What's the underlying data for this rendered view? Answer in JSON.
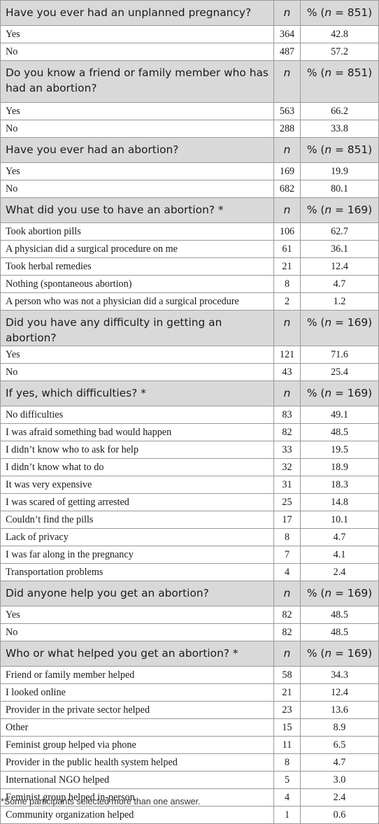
{
  "sections": [
    {
      "question": "Have you ever had an unplanned pregnancy?",
      "n_label": "n",
      "pct_label": "% (n = 851)",
      "rows": [
        {
          "label": "Yes",
          "n": "364",
          "pct": "42.8"
        },
        {
          "label": "No",
          "n": "487",
          "pct": "57.2"
        }
      ]
    },
    {
      "question": "Do you know a friend or family member who has had an abortion?",
      "n_label": "n",
      "pct_label": "% (n = 851)",
      "rows": [
        {
          "label": "Yes",
          "n": "563",
          "pct": "66.2"
        },
        {
          "label": "No",
          "n": "288",
          "pct": "33.8"
        }
      ]
    },
    {
      "question": "Have you ever had an abortion?",
      "n_label": "n",
      "pct_label": "% (n = 851)",
      "rows": [
        {
          "label": "Yes",
          "n": "169",
          "pct": "19.9"
        },
        {
          "label": "No",
          "n": "682",
          "pct": "80.1"
        }
      ]
    },
    {
      "question": "What did you use to have an abortion? *",
      "n_label": "n",
      "pct_label": "% (n = 169)",
      "rows": [
        {
          "label": "Took abortion pills",
          "n": "106",
          "pct": "62.7"
        },
        {
          "label": "A physician did a surgical procedure on me",
          "n": "61",
          "pct": "36.1"
        },
        {
          "label": "Took herbal remedies",
          "n": "21",
          "pct": "12.4"
        },
        {
          "label": "Nothing (spontaneous abortion)",
          "n": "8",
          "pct": "4.7"
        },
        {
          "label": "A person who was not a physician did a surgical procedure",
          "n": "2",
          "pct": "1.2"
        }
      ]
    },
    {
      "question": "Did you have any difficulty in getting an abortion?",
      "n_label": "n",
      "pct_label": "% (n = 169)",
      "rows": [
        {
          "label": "Yes",
          "n": "121",
          "pct": "71.6"
        },
        {
          "label": "No",
          "n": "43",
          "pct": "25.4"
        }
      ]
    },
    {
      "question": "If yes, which difficulties? *",
      "n_label": "n",
      "pct_label": "% (n = 169)",
      "rows": [
        {
          "label": "No difficulties",
          "n": "83",
          "pct": "49.1"
        },
        {
          "label": "I was afraid something bad would happen",
          "n": "82",
          "pct": "48.5"
        },
        {
          "label": "I didn’t know who to ask for help",
          "n": "33",
          "pct": "19.5"
        },
        {
          "label": "I didn’t know what to do",
          "n": "32",
          "pct": "18.9"
        },
        {
          "label": "It was very expensive",
          "n": "31",
          "pct": "18.3"
        },
        {
          "label": "I was scared of getting arrested",
          "n": "25",
          "pct": "14.8"
        },
        {
          "label": "Couldn’t find the pills",
          "n": "17",
          "pct": "10.1"
        },
        {
          "label": "Lack of privacy",
          "n": "8",
          "pct": "4.7"
        },
        {
          "label": "I was far along in the pregnancy",
          "n": "7",
          "pct": "4.1"
        },
        {
          "label": "Transportation problems",
          "n": "4",
          "pct": "2.4"
        }
      ]
    },
    {
      "question": "Did anyone help you get an abortion?",
      "n_label": "n",
      "pct_label": "% (n = 169)",
      "rows": [
        {
          "label": "Yes",
          "n": "82",
          "pct": "48.5"
        },
        {
          "label": "No",
          "n": "82",
          "pct": "48.5"
        }
      ]
    },
    {
      "question": "Who or what helped you get an abortion? *",
      "n_label": "n",
      "pct_label": "% (n = 169)",
      "rows": [
        {
          "label": "Friend or family member helped",
          "n": "58",
          "pct": "34.3"
        },
        {
          "label": "I looked online",
          "n": "21",
          "pct": "12.4"
        },
        {
          "label": "Provider in the private sector helped",
          "n": "23",
          "pct": "13.6"
        },
        {
          "label": "Other",
          "n": "15",
          "pct": "8.9"
        },
        {
          "label": "Feminist group helped via phone",
          "n": "11",
          "pct": "6.5"
        },
        {
          "label": "Provider in the public health system helped",
          "n": "8",
          "pct": "4.7"
        },
        {
          "label": "International NGO helped",
          "n": "5",
          "pct": "3.0"
        },
        {
          "label": "Feminist group helped in-person",
          "n": "4",
          "pct": "2.4"
        },
        {
          "label": "Community organization helped",
          "n": "1",
          "pct": "0.6"
        }
      ]
    }
  ],
  "footnote": "*Some participants selected more than one answer."
}
